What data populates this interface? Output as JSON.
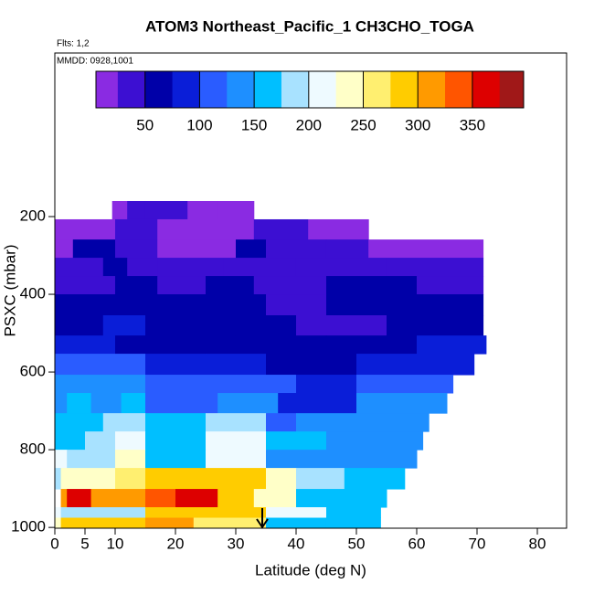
{
  "chart_data": {
    "type": "heatmap",
    "title": "ATOM3 Northeast_Pacific_1 CH3CHO_TOGA",
    "subtitle": "Flts: 1,2",
    "annotation": "MMDD: 0928,1001",
    "x_label": "Latitude (deg N)",
    "y_label": "PSXC (mbar)",
    "xlim": [
      0,
      84.85
    ],
    "ylim": [
      1002,
      -221
    ],
    "xticks": [
      0,
      5,
      10,
      20,
      30,
      40,
      50,
      60,
      70,
      80
    ],
    "yticks": [
      200,
      400,
      600,
      800,
      1000
    ],
    "colorbar_range": [
      5,
      397
    ],
    "colorbar_ticks": [
      50,
      100,
      150,
      200,
      250,
      300,
      350
    ],
    "colorscale": {
      "breaks": [
        0,
        25,
        50,
        75,
        100,
        125,
        150,
        175,
        200,
        225,
        250,
        275,
        300,
        325,
        350,
        375,
        400
      ],
      "colors": [
        "#8a2be2",
        "#3c0fd2",
        "#0000a8",
        "#0a1ed8",
        "#2a5cff",
        "#1e8fff",
        "#00bfff",
        "#a8e2ff",
        "#eefaff",
        "#ffffc8",
        "#ffef70",
        "#ffcc00",
        "#ff9a00",
        "#ff5500",
        "#dd0000",
        "#a01818"
      ]
    },
    "rows": [
      {
        "p": [
          160,
          207
        ],
        "cells": [
          [
            9.5,
            12,
            20
          ],
          [
            12,
            15,
            40
          ],
          [
            15,
            22,
            30
          ],
          [
            22,
            27,
            15
          ],
          [
            27,
            33,
            10
          ]
        ]
      },
      {
        "p": [
          207,
          259
        ],
        "cells": [
          [
            0,
            5,
            15
          ],
          [
            5,
            10,
            10
          ],
          [
            10,
            17,
            35
          ],
          [
            17,
            24,
            20
          ],
          [
            24,
            33,
            10
          ],
          [
            33,
            42,
            30
          ],
          [
            42,
            52,
            15
          ]
        ]
      },
      {
        "p": [
          259,
          306
        ],
        "cells": [
          [
            0,
            3,
            20
          ],
          [
            3,
            10,
            50
          ],
          [
            10,
            17,
            30
          ],
          [
            17,
            30,
            15
          ],
          [
            30,
            35,
            50
          ],
          [
            35,
            45,
            30
          ],
          [
            45,
            52,
            40
          ],
          [
            52,
            71,
            20
          ]
        ]
      },
      {
        "p": [
          306,
          353
        ],
        "cells": [
          [
            0,
            8,
            40
          ],
          [
            8,
            12,
            50
          ],
          [
            12,
            17,
            30
          ],
          [
            17,
            28,
            35
          ],
          [
            28,
            40,
            25
          ],
          [
            40,
            55,
            30
          ],
          [
            55,
            71,
            35
          ]
        ]
      },
      {
        "p": [
          353,
          400
        ],
        "cells": [
          [
            0,
            10,
            45
          ],
          [
            10,
            17,
            55
          ],
          [
            17,
            25,
            35
          ],
          [
            25,
            33,
            50
          ],
          [
            33,
            45,
            30
          ],
          [
            45,
            60,
            55
          ],
          [
            60,
            71,
            45
          ]
        ]
      },
      {
        "p": [
          400,
          454
        ],
        "cells": [
          [
            0,
            10,
            55
          ],
          [
            10,
            17,
            70
          ],
          [
            17,
            35,
            50
          ],
          [
            35,
            45,
            40
          ],
          [
            45,
            60,
            60
          ],
          [
            60,
            71,
            55
          ]
        ]
      },
      {
        "p": [
          454,
          506
        ],
        "cells": [
          [
            0,
            8,
            60
          ],
          [
            8,
            15,
            75
          ],
          [
            15,
            30,
            55
          ],
          [
            30,
            40,
            60
          ],
          [
            40,
            55,
            45
          ],
          [
            55,
            71,
            65
          ]
        ]
      },
      {
        "p": [
          506,
          553
        ],
        "cells": [
          [
            0,
            10,
            90
          ],
          [
            10,
            15,
            70
          ],
          [
            15,
            30,
            60
          ],
          [
            30,
            45,
            55
          ],
          [
            45,
            60,
            70
          ],
          [
            60,
            71.5,
            85
          ]
        ]
      },
      {
        "p": [
          553,
          607
        ],
        "cells": [
          [
            0,
            8,
            120
          ],
          [
            8,
            15,
            100
          ],
          [
            15,
            25,
            95
          ],
          [
            25,
            35,
            80
          ],
          [
            35,
            50,
            60
          ],
          [
            50,
            60,
            75
          ],
          [
            60,
            69.5,
            95
          ]
        ]
      },
      {
        "p": [
          607,
          654
        ],
        "cells": [
          [
            0,
            15,
            145
          ],
          [
            15,
            30,
            120
          ],
          [
            30,
            40,
            110
          ],
          [
            40,
            50,
            95
          ],
          [
            50,
            66,
            115
          ]
        ]
      },
      {
        "p": [
          654,
          706
        ],
        "cells": [
          [
            0,
            2,
            130
          ],
          [
            2,
            6,
            165
          ],
          [
            6,
            11,
            140
          ],
          [
            11,
            15,
            170
          ],
          [
            15,
            27,
            115
          ],
          [
            27,
            37,
            140
          ],
          [
            37,
            50,
            90
          ],
          [
            50,
            65,
            125
          ]
        ]
      },
      {
        "p": [
          706,
          753
        ],
        "cells": [
          [
            0,
            8,
            150
          ],
          [
            8,
            15,
            180
          ],
          [
            15,
            25,
            150
          ],
          [
            25,
            35,
            190
          ],
          [
            35,
            40,
            120
          ],
          [
            40,
            50,
            130
          ],
          [
            50,
            62,
            145
          ]
        ]
      },
      {
        "p": [
          753,
          800
        ],
        "cells": [
          [
            0,
            5,
            160
          ],
          [
            5,
            10,
            185
          ],
          [
            10,
            15,
            220
          ],
          [
            15,
            25,
            170
          ],
          [
            25,
            35,
            205
          ],
          [
            35,
            45,
            150
          ],
          [
            45,
            61,
            135
          ]
        ]
      },
      {
        "p": [
          800,
          847
        ],
        "cells": [
          [
            0,
            2,
            200
          ],
          [
            2,
            10,
            190
          ],
          [
            10,
            15,
            230
          ],
          [
            15,
            25,
            160
          ],
          [
            25,
            35,
            215
          ],
          [
            35,
            45,
            145
          ],
          [
            45,
            60,
            140
          ]
        ]
      },
      {
        "p": [
          847,
          901
        ],
        "cells": [
          [
            0,
            1,
            180
          ],
          [
            1,
            10,
            240
          ],
          [
            10,
            15,
            260
          ],
          [
            15,
            35,
            290
          ],
          [
            35,
            40,
            240
          ],
          [
            40,
            48,
            190
          ],
          [
            48,
            58,
            150
          ]
        ]
      },
      {
        "p": [
          901,
          948
        ],
        "cells": [
          [
            1,
            2,
            300
          ],
          [
            2,
            6,
            355
          ],
          [
            6,
            15,
            300
          ],
          [
            15,
            20,
            330
          ],
          [
            20,
            27,
            365
          ],
          [
            27,
            33,
            280
          ],
          [
            33,
            40,
            230
          ],
          [
            40,
            48,
            170
          ],
          [
            48,
            55,
            150
          ]
        ]
      },
      {
        "p": [
          948,
          975
        ],
        "cells": [
          [
            0,
            1,
            210
          ],
          [
            1,
            15,
            195
          ],
          [
            15,
            35,
            290
          ],
          [
            35,
            45,
            215
          ],
          [
            45,
            54,
            160
          ]
        ]
      },
      {
        "p": [
          975,
          1000
        ],
        "cells": [
          [
            0,
            1,
            230
          ],
          [
            1,
            15,
            295
          ],
          [
            15,
            23,
            310
          ],
          [
            23,
            35,
            255
          ],
          [
            35,
            45,
            160
          ],
          [
            45,
            54,
            150
          ]
        ]
      }
    ]
  }
}
